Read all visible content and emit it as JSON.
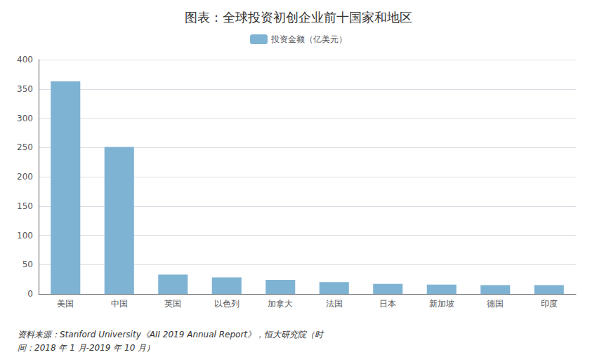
{
  "chart_data": {
    "type": "bar",
    "title": "图表：全球投资初创企业前十国家和地区",
    "categories": [
      "美国",
      "中国",
      "英国",
      "以色列",
      "加拿大",
      "法国",
      "日本",
      "新加坡",
      "德国",
      "印度"
    ],
    "series": [
      {
        "name": "投资金额（亿美元）",
        "color": "#7fb3d3",
        "values": [
          363,
          251,
          33,
          28,
          24,
          20,
          17,
          16,
          15,
          15
        ]
      }
    ],
    "ylim": [
      0,
      400
    ],
    "yticks": [
      0,
      50,
      100,
      150,
      200,
      250,
      300,
      350,
      400
    ],
    "grid": true,
    "legend": "top",
    "annotations": [
      "资料来源：Stanford University《AII 2019 Annual Report》，恒大研究院（时\n间：2018 年 1 月-2019 年 10 月）"
    ]
  }
}
